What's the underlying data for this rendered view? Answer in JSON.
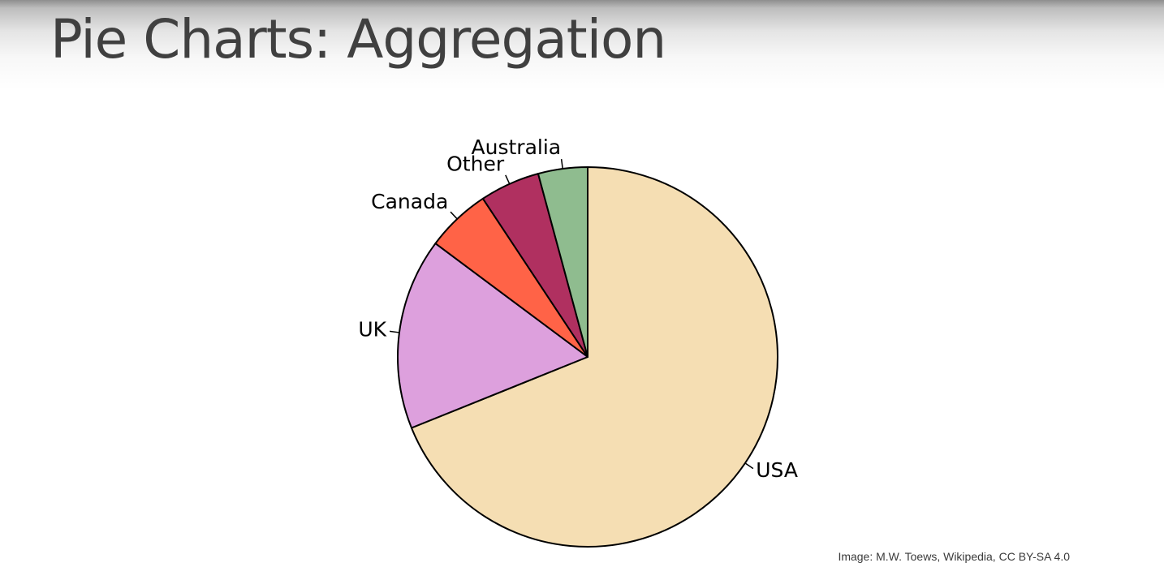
{
  "slide": {
    "title": "Pie Charts: Aggregation",
    "credit": "Image: M.W. Toews, Wikipedia, CC BY-SA 4.0"
  },
  "chart_data": {
    "type": "pie",
    "title": "",
    "start_angle_deg": 90,
    "direction": "clockwise",
    "slices": [
      {
        "label": "USA",
        "value": 68.9,
        "color": "#f5deb3"
      },
      {
        "label": "UK",
        "value": 16.3,
        "color": "#dda0dd"
      },
      {
        "label": "Canada",
        "value": 5.5,
        "color": "#ff6347"
      },
      {
        "label": "Other",
        "value": 5.1,
        "color": "#b03060"
      },
      {
        "label": "Australia",
        "value": 4.2,
        "color": "#8fbc8f"
      }
    ],
    "edge_color": "#000000",
    "legend": "none"
  }
}
